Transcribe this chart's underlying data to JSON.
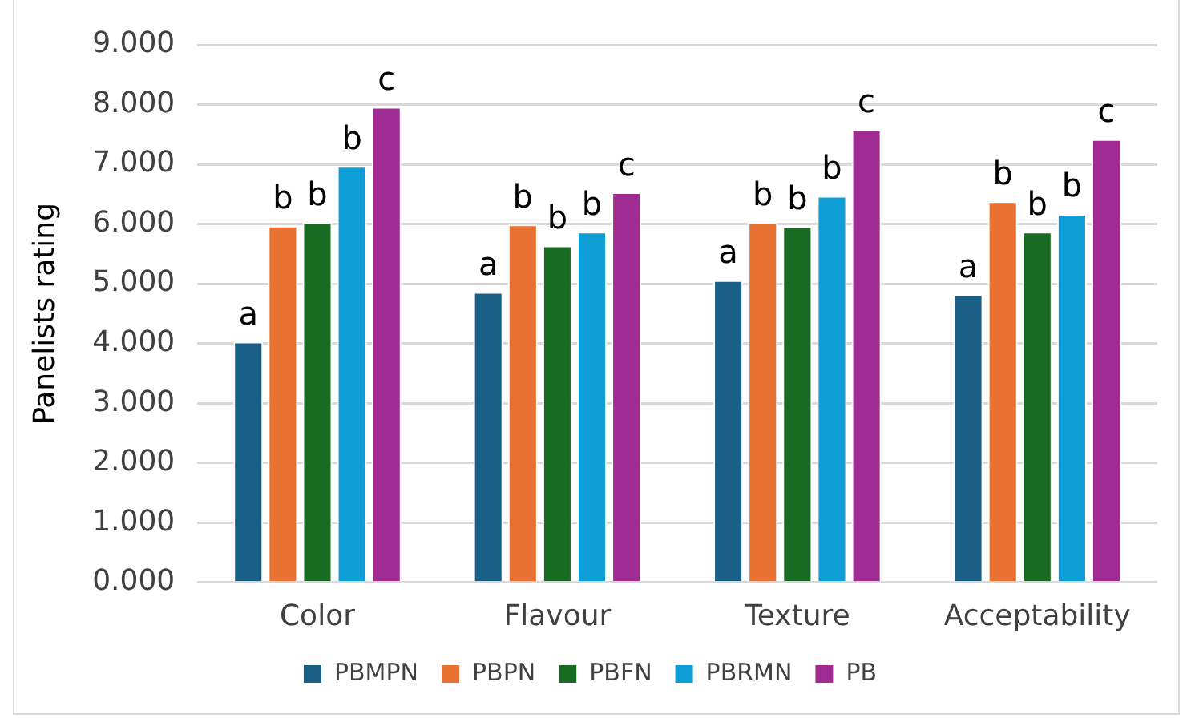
{
  "chart_data": {
    "type": "bar",
    "ylabel": "Panelists rating",
    "categories": [
      "Color",
      "Flavour",
      "Texture",
      "Acceptability"
    ],
    "series": [
      {
        "name": "PBMPN",
        "color": "#1a5f85",
        "values": [
          4.03,
          4.86,
          5.06,
          4.82
        ],
        "value_labels": [
          "a",
          "a",
          "a",
          "a"
        ]
      },
      {
        "name": "PBPN",
        "color": "#e97132",
        "values": [
          5.97,
          5.99,
          6.03,
          6.38
        ],
        "value_labels": [
          "b",
          "b",
          "b",
          "b"
        ]
      },
      {
        "name": "PBFN",
        "color": "#196b24",
        "values": [
          6.03,
          5.64,
          5.96,
          5.87
        ],
        "value_labels": [
          "b",
          "b",
          "b",
          "b"
        ]
      },
      {
        "name": "PBRMN",
        "color": "#0f9ed5",
        "values": [
          6.97,
          5.87,
          6.47,
          6.17
        ],
        "value_labels": [
          "b",
          "b",
          "b",
          "b"
        ]
      },
      {
        "name": "PB",
        "color": "#a02b93",
        "values": [
          7.96,
          6.53,
          7.58,
          7.42
        ],
        "value_labels": [
          "c",
          "c",
          "c",
          "c"
        ]
      }
    ],
    "ylim": [
      0,
      9
    ],
    "yticks": [
      {
        "value": 0,
        "label": "0.000"
      },
      {
        "value": 1,
        "label": "1.000"
      },
      {
        "value": 2,
        "label": "2.000"
      },
      {
        "value": 3,
        "label": "3.000"
      },
      {
        "value": 4,
        "label": "4.000"
      },
      {
        "value": 5,
        "label": "5.000"
      },
      {
        "value": 6,
        "label": "6.000"
      },
      {
        "value": 7,
        "label": "7.000"
      },
      {
        "value": 8,
        "label": "8.000"
      },
      {
        "value": 9,
        "label": "9.000"
      }
    ],
    "grid": "y",
    "legend": "bottom"
  }
}
